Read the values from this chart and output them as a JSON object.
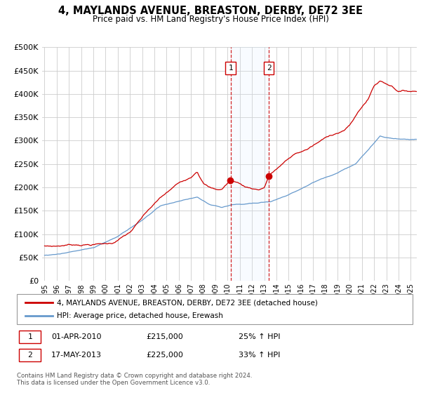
{
  "title": "4, MAYLANDS AVENUE, BREASTON, DERBY, DE72 3EE",
  "subtitle": "Price paid vs. HM Land Registry's House Price Index (HPI)",
  "legend_line1": "4, MAYLANDS AVENUE, BREASTON, DERBY, DE72 3EE (detached house)",
  "legend_line2": "HPI: Average price, detached house, Erewash",
  "transaction1_label": "1",
  "transaction1_date": "01-APR-2010",
  "transaction1_price": "£215,000",
  "transaction1_hpi": "25% ↑ HPI",
  "transaction2_label": "2",
  "transaction2_date": "17-MAY-2013",
  "transaction2_price": "£225,000",
  "transaction2_hpi": "33% ↑ HPI",
  "footer": "Contains HM Land Registry data © Crown copyright and database right 2024.\nThis data is licensed under the Open Government Licence v3.0.",
  "red_color": "#cc0000",
  "blue_color": "#6699cc",
  "shade_color": "#ddeeff",
  "transaction1_x": 2010.25,
  "transaction2_x": 2013.37,
  "ylim_min": 0,
  "ylim_max": 500000,
  "xlim_min": 1994.8,
  "xlim_max": 2025.5
}
